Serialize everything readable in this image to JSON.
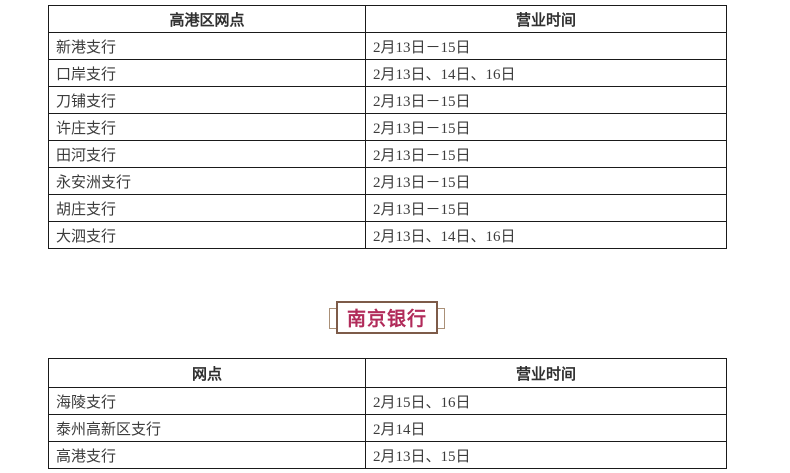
{
  "colors": {
    "table_border": "#1a1a1a",
    "body_text": "#3c3c3c",
    "title_text": "#b12b5a",
    "title_box_border": "#7d5b49",
    "title_bracket_border": "#aa9078",
    "background": "#ffffff"
  },
  "section_title": {
    "label": "南京银行"
  },
  "table1": {
    "headers": [
      "高港区网点",
      "营业时间"
    ],
    "rows": [
      [
        "新港支行",
        "2月13日－15日"
      ],
      [
        "口岸支行",
        "2月13日、14日、16日"
      ],
      [
        "刀铺支行",
        "2月13日－15日"
      ],
      [
        "许庄支行",
        "2月13日－15日"
      ],
      [
        "田河支行",
        "2月13日－15日"
      ],
      [
        "永安洲支行",
        "2月13日－15日"
      ],
      [
        "胡庄支行",
        "2月13日－15日"
      ],
      [
        "大泗支行",
        "2月13日、14日、16日"
      ]
    ]
  },
  "table2": {
    "headers": [
      "网点",
      "营业时间"
    ],
    "rows": [
      [
        "海陵支行",
        "2月15日、16日"
      ],
      [
        "泰州高新区支行",
        "2月14日"
      ],
      [
        "高港支行",
        "2月13日、15日"
      ]
    ]
  }
}
